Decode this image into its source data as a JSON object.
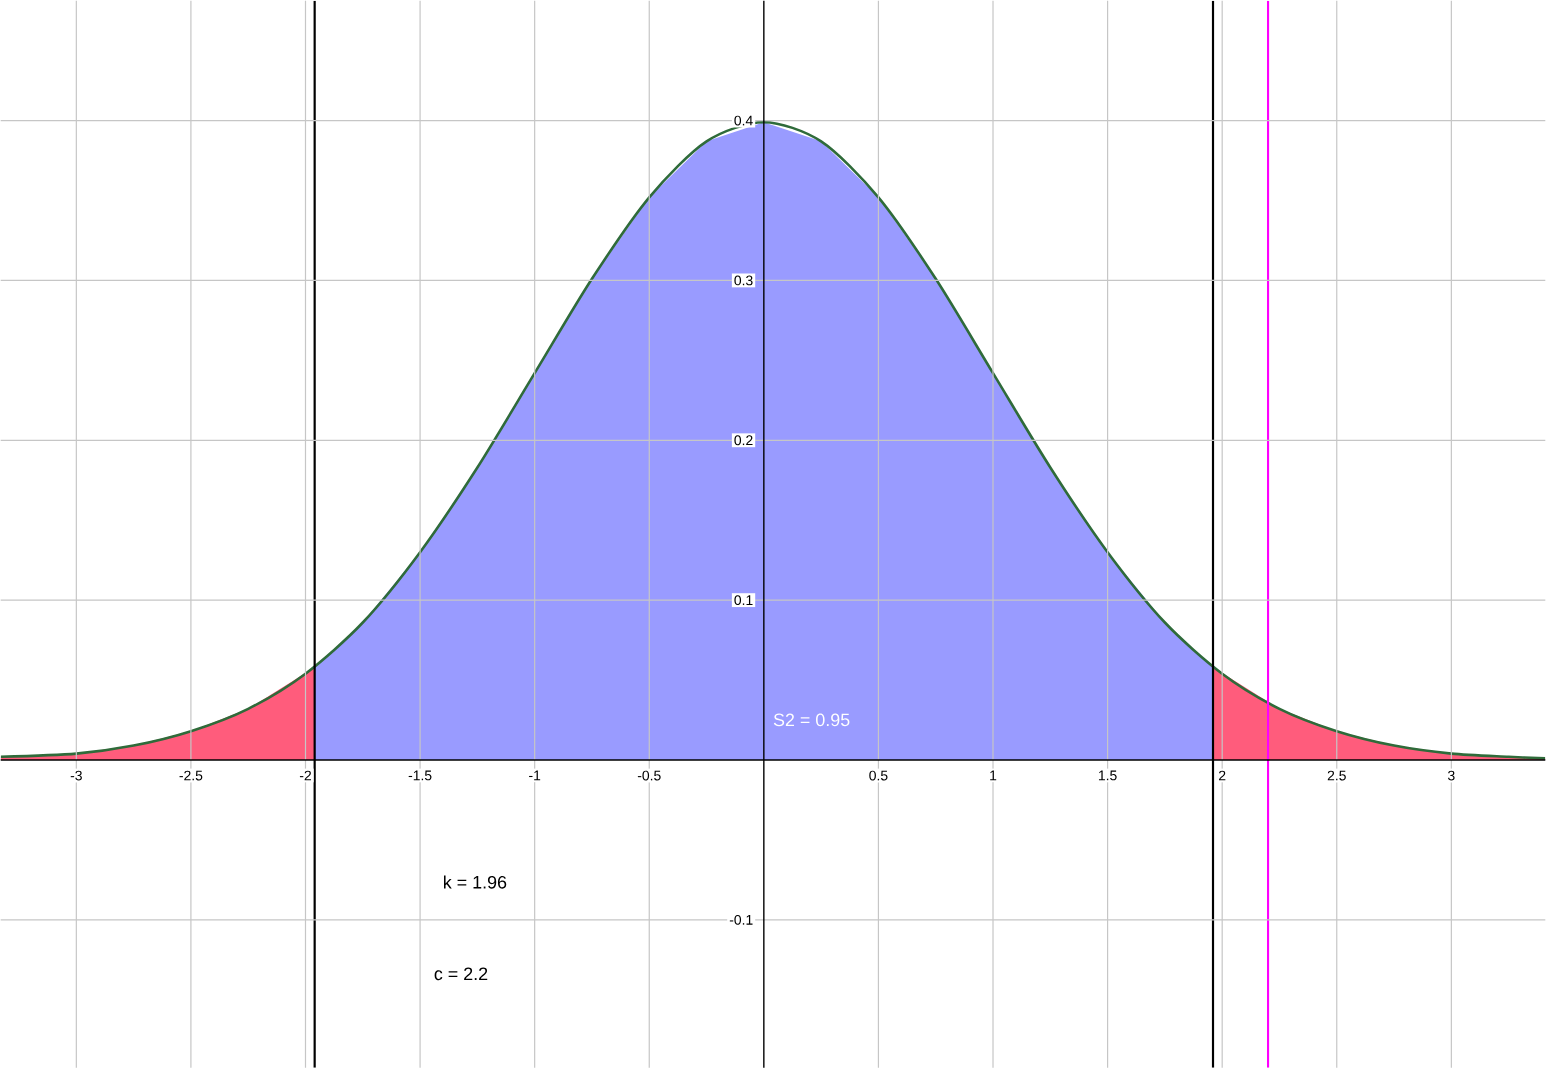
{
  "chart_data": {
    "type": "area",
    "series": [
      {
        "color": "#ff5c7c",
        "x": [
          -3.33,
          -3,
          -2.75,
          -2.5,
          -2.25,
          -1.96
        ],
        "values": [
          0.002,
          0.004,
          0.009,
          0.018,
          0.032,
          0.058
        ]
      },
      {
        "color": "#999bff",
        "x": [
          -1.96,
          -1.75,
          -1.5,
          -1.25,
          -1,
          -0.75,
          -0.5,
          -0.25,
          0,
          0.25,
          0.5,
          0.75,
          1,
          1.25,
          1.5,
          1.75,
          1.96
        ],
        "values": [
          0.058,
          0.086,
          0.13,
          0.183,
          0.242,
          0.301,
          0.352,
          0.387,
          0.399,
          0.387,
          0.352,
          0.301,
          0.242,
          0.183,
          0.13,
          0.086,
          0.058
        ]
      },
      {
        "color": "#ff5c7c",
        "x": [
          1.96,
          2.25,
          2.5,
          2.75,
          3,
          3.25,
          3.41
        ],
        "values": [
          0.058,
          0.032,
          0.018,
          0.009,
          0.004,
          0.002,
          0.001
        ]
      },
      {
        "type": "line",
        "color": "#2f6b3a",
        "x": [
          -3.33,
          -3,
          -2.75,
          -2.5,
          -2.25,
          -2,
          -1.75,
          -1.5,
          -1.25,
          -1,
          -0.75,
          -0.5,
          -0.25,
          0,
          0.25,
          0.5,
          0.75,
          1,
          1.25,
          1.5,
          1.75,
          2,
          2.25,
          2.5,
          2.75,
          3,
          3.25,
          3.41
        ],
        "values": [
          0.002,
          0.004,
          0.009,
          0.018,
          0.032,
          0.054,
          0.086,
          0.13,
          0.183,
          0.242,
          0.301,
          0.352,
          0.387,
          0.399,
          0.387,
          0.352,
          0.301,
          0.242,
          0.183,
          0.13,
          0.086,
          0.054,
          0.032,
          0.018,
          0.009,
          0.004,
          0.002,
          0.001
        ]
      }
    ],
    "xlim": [
      -3.33,
      3.41
    ],
    "ylim": [
      -0.1925,
      0.475
    ],
    "xticks": [
      -3,
      -2.5,
      -2,
      -1.5,
      -1,
      -0.5,
      0.5,
      1,
      1.5,
      2,
      2.5,
      3
    ],
    "yticks": [
      -0.1,
      0.1,
      0.2,
      0.3,
      0.4
    ],
    "grid": true,
    "ref_lines": [
      {
        "axis": "x",
        "value": -1.96,
        "color": "#000000"
      },
      {
        "axis": "x",
        "value": 1.96,
        "color": "#000000"
      },
      {
        "axis": "x",
        "value": 2.2,
        "color": "#ff00ff"
      }
    ],
    "annotations": [
      "S2 = 0.95",
      "k = 1.96",
      "c = 2.2"
    ]
  }
}
